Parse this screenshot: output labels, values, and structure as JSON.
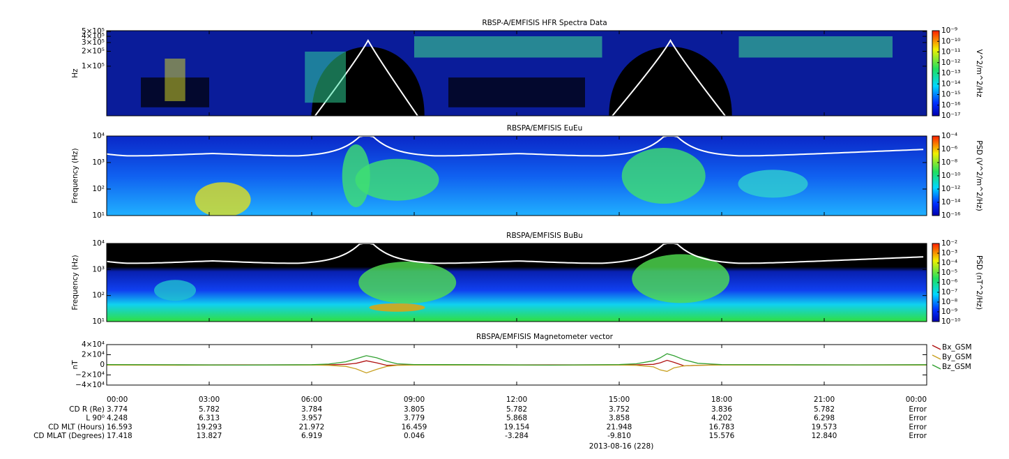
{
  "chart_data": [
    {
      "type": "spectrogram",
      "title": "RBSP-A/EMFISIS  HFR Spectra Data",
      "ylabel": "Hz",
      "ylog": true,
      "ylim": [
        10000,
        520000
      ],
      "yticks": [
        {
          "value": 100000,
          "label": "1×10⁵"
        },
        {
          "value": 200000,
          "label": "2×10⁵"
        },
        {
          "value": 300000,
          "label": "3×10⁵"
        },
        {
          "value": 400000,
          "label": "4×10⁵"
        },
        {
          "value": 500000,
          "label": "5×10⁵"
        }
      ],
      "colorbar": {
        "label": "V^2/m^2/Hz",
        "log": true,
        "lim": [
          1e-17,
          1e-09
        ],
        "ticks": [
          {
            "value": 1e-17,
            "label": "10⁻¹⁷"
          },
          {
            "value": 1e-16,
            "label": "10⁻¹⁶"
          },
          {
            "value": 1e-15,
            "label": "10⁻¹⁵"
          },
          {
            "value": 1e-14,
            "label": "10⁻¹⁴"
          },
          {
            "value": 1e-13,
            "label": "10⁻¹³"
          },
          {
            "value": 1e-12,
            "label": "10⁻¹²"
          },
          {
            "value": 1e-11,
            "label": "10⁻¹¹"
          },
          {
            "value": 1e-10,
            "label": "10⁻¹⁰"
          },
          {
            "value": 1e-09,
            "label": "10⁻⁹"
          }
        ]
      }
    },
    {
      "type": "spectrogram",
      "title": "RBSPA/EMFISIS  EuEu",
      "ylabel": "Frequency (Hz)",
      "ylog": true,
      "ylim": [
        10,
        10000
      ],
      "yticks": [
        {
          "value": 10,
          "label": "10¹"
        },
        {
          "value": 100,
          "label": "10²"
        },
        {
          "value": 1000,
          "label": "10³"
        },
        {
          "value": 10000,
          "label": "10⁴"
        }
      ],
      "colorbar": {
        "label": "PSD (V^2/m^2/Hz)",
        "log": true,
        "lim": [
          1e-16,
          0.0001
        ],
        "ticks": [
          {
            "value": 1e-16,
            "label": "10⁻¹⁶"
          },
          {
            "value": 1e-14,
            "label": "10⁻¹⁴"
          },
          {
            "value": 1e-12,
            "label": "10⁻¹²"
          },
          {
            "value": 1e-10,
            "label": "10⁻¹⁰"
          },
          {
            "value": 1e-08,
            "label": "10⁻⁸"
          },
          {
            "value": 1e-06,
            "label": "10⁻⁶"
          },
          {
            "value": 0.0001,
            "label": "10⁻⁴"
          }
        ]
      }
    },
    {
      "type": "spectrogram",
      "title": "RBSPA/EMFISIS  BuBu",
      "ylabel": "Frequency (Hz)",
      "ylog": true,
      "ylim": [
        10,
        10000
      ],
      "yticks": [
        {
          "value": 10,
          "label": "10¹"
        },
        {
          "value": 100,
          "label": "10²"
        },
        {
          "value": 1000,
          "label": "10³"
        },
        {
          "value": 10000,
          "label": "10⁴"
        }
      ],
      "colorbar": {
        "label": "PSD (nT^2/Hz)",
        "log": true,
        "lim": [
          1e-10,
          0.01
        ],
        "ticks": [
          {
            "value": 1e-10,
            "label": "10⁻¹⁰"
          },
          {
            "value": 1e-09,
            "label": "10⁻⁹"
          },
          {
            "value": 1e-08,
            "label": "10⁻⁸"
          },
          {
            "value": 1e-07,
            "label": "10⁻⁷"
          },
          {
            "value": 1e-06,
            "label": "10⁻⁶"
          },
          {
            "value": 1e-05,
            "label": "10⁻⁵"
          },
          {
            "value": 0.0001,
            "label": "10⁻⁴"
          },
          {
            "value": 0.001,
            "label": "10⁻³"
          },
          {
            "value": 0.01,
            "label": "10⁻²"
          }
        ]
      }
    },
    {
      "type": "line",
      "title": "RBSPA/EMFISIS  Magnetometer vector",
      "ylabel": "nT",
      "ylim": [
        -40000,
        40000
      ],
      "yticks": [
        {
          "value": -40000,
          "label": "−4×10⁴"
        },
        {
          "value": -20000,
          "label": "−2×10⁴"
        },
        0,
        {
          "value": 20000,
          "label": "2×10⁴"
        },
        {
          "value": 40000,
          "label": "4×10⁴"
        }
      ],
      "xlim": [
        0,
        24
      ],
      "xticks": [
        {
          "value": 0,
          "label": "00:00"
        },
        {
          "value": 3,
          "label": "03:00"
        },
        {
          "value": 6,
          "label": "06:00"
        },
        {
          "value": 9,
          "label": "09:00"
        },
        {
          "value": 12,
          "label": "12:00"
        },
        {
          "value": 15,
          "label": "15:00"
        },
        {
          "value": 18,
          "label": "18:00"
        },
        {
          "value": 21,
          "label": "21:00"
        },
        {
          "value": 24,
          "label": "00:00"
        }
      ],
      "xlabel": "2013-08-16 (228)",
      "legend": "outside right",
      "x": [
        0,
        2,
        4,
        6,
        6.5,
        7,
        7.3,
        7.6,
        7.9,
        8.2,
        8.5,
        9,
        11,
        13,
        15,
        15.5,
        16,
        16.2,
        16.4,
        16.6,
        16.9,
        17.3,
        18,
        20,
        22,
        24
      ],
      "series": [
        {
          "name": "Bx_GSM",
          "color": "#b01010",
          "values": [
            0,
            0,
            0,
            0,
            0,
            1000,
            3000,
            8000,
            4000,
            -1000,
            -500,
            0,
            0,
            0,
            0,
            0,
            1000,
            4000,
            9000,
            5000,
            -2000,
            -1000,
            0,
            0,
            0,
            0
          ]
        },
        {
          "name": "By_GSM",
          "color": "#c8a020",
          "values": [
            -500,
            -800,
            -600,
            -300,
            -1000,
            -3000,
            -8000,
            -16000,
            -9000,
            -3000,
            -1000,
            -500,
            -600,
            -700,
            -500,
            -1000,
            -4000,
            -10000,
            -13000,
            -6000,
            -2000,
            -800,
            -500,
            -600,
            -500,
            -400
          ]
        },
        {
          "name": "Bz_GSM",
          "color": "#30a030",
          "values": [
            500,
            200,
            -500,
            300,
            1500,
            6000,
            12000,
            18000,
            14000,
            7000,
            2000,
            500,
            300,
            -500,
            500,
            2000,
            8000,
            14000,
            22000,
            18000,
            10000,
            3000,
            600,
            200,
            -200,
            300
          ]
        }
      ]
    }
  ],
  "ephemeris": {
    "rows": [
      {
        "label": "CD R (Re)",
        "values": [
          "3.774",
          "5.782",
          "3.784",
          "3.805",
          "5.782",
          "3.752",
          "3.836",
          "5.782",
          "Error"
        ]
      },
      {
        "label": "L 90⁰",
        "values": [
          "4.248",
          "6.313",
          "3.957",
          "3.779",
          "5.868",
          "3.858",
          "4.202",
          "6.298",
          "Error"
        ]
      },
      {
        "label": "CD MLT (Hours)",
        "values": [
          "16.593",
          "19.293",
          "21.972",
          "16.459",
          "19.154",
          "21.948",
          "16.783",
          "19.573",
          "Error"
        ]
      },
      {
        "label": "CD MLAT (Degrees)",
        "values": [
          "17.418",
          "13.827",
          "6.919",
          "0.046",
          "-3.284",
          "-9.810",
          "15.576",
          "12.840",
          "Error"
        ]
      }
    ]
  }
}
